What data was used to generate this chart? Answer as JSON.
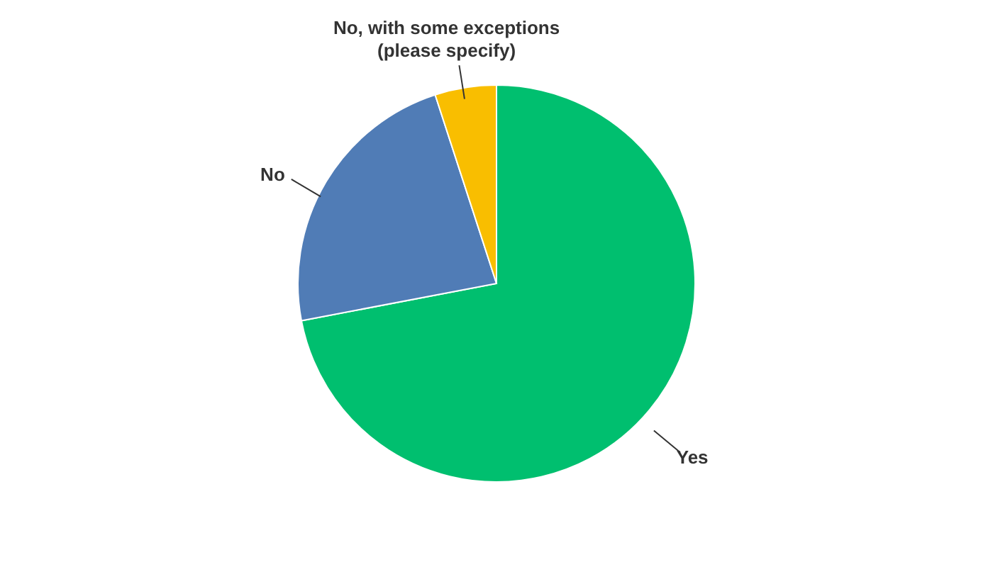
{
  "chart_data": {
    "type": "pie",
    "categories": [
      "Yes",
      "No",
      "No, with some exceptions (please specify)"
    ],
    "values": [
      72,
      23,
      5
    ],
    "colors": [
      "#00bf6f",
      "#507cb6",
      "#f9be00"
    ]
  }
}
